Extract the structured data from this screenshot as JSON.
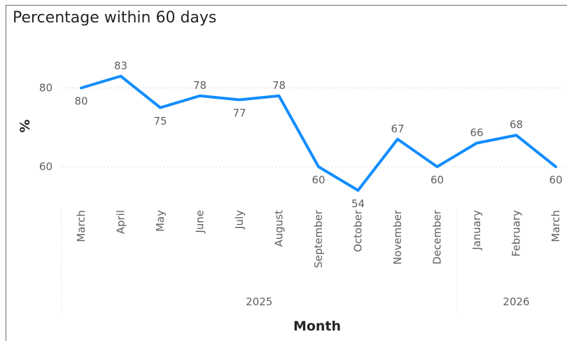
{
  "chart_data": {
    "type": "line",
    "title": "Percentage within 60 days",
    "xlabel": "Month",
    "ylabel": "%",
    "color": "#118DFF",
    "ylim": [
      53,
      85
    ],
    "yticks": [
      60,
      80
    ],
    "grid": true,
    "months": [
      "March",
      "April",
      "May",
      "June",
      "July",
      "August",
      "September",
      "October",
      "November",
      "December",
      "January",
      "February",
      "March"
    ],
    "values": [
      80,
      83,
      75,
      78,
      77,
      78,
      60,
      54,
      67,
      60,
      66,
      68,
      60
    ],
    "labels": [
      "80",
      "83",
      "75",
      "78",
      "77",
      "78",
      "60",
      "54",
      "67",
      "60",
      "66",
      "68",
      "60"
    ],
    "years": [
      {
        "label": "2025",
        "count": 10
      },
      {
        "label": "2026",
        "count": 3
      }
    ]
  }
}
